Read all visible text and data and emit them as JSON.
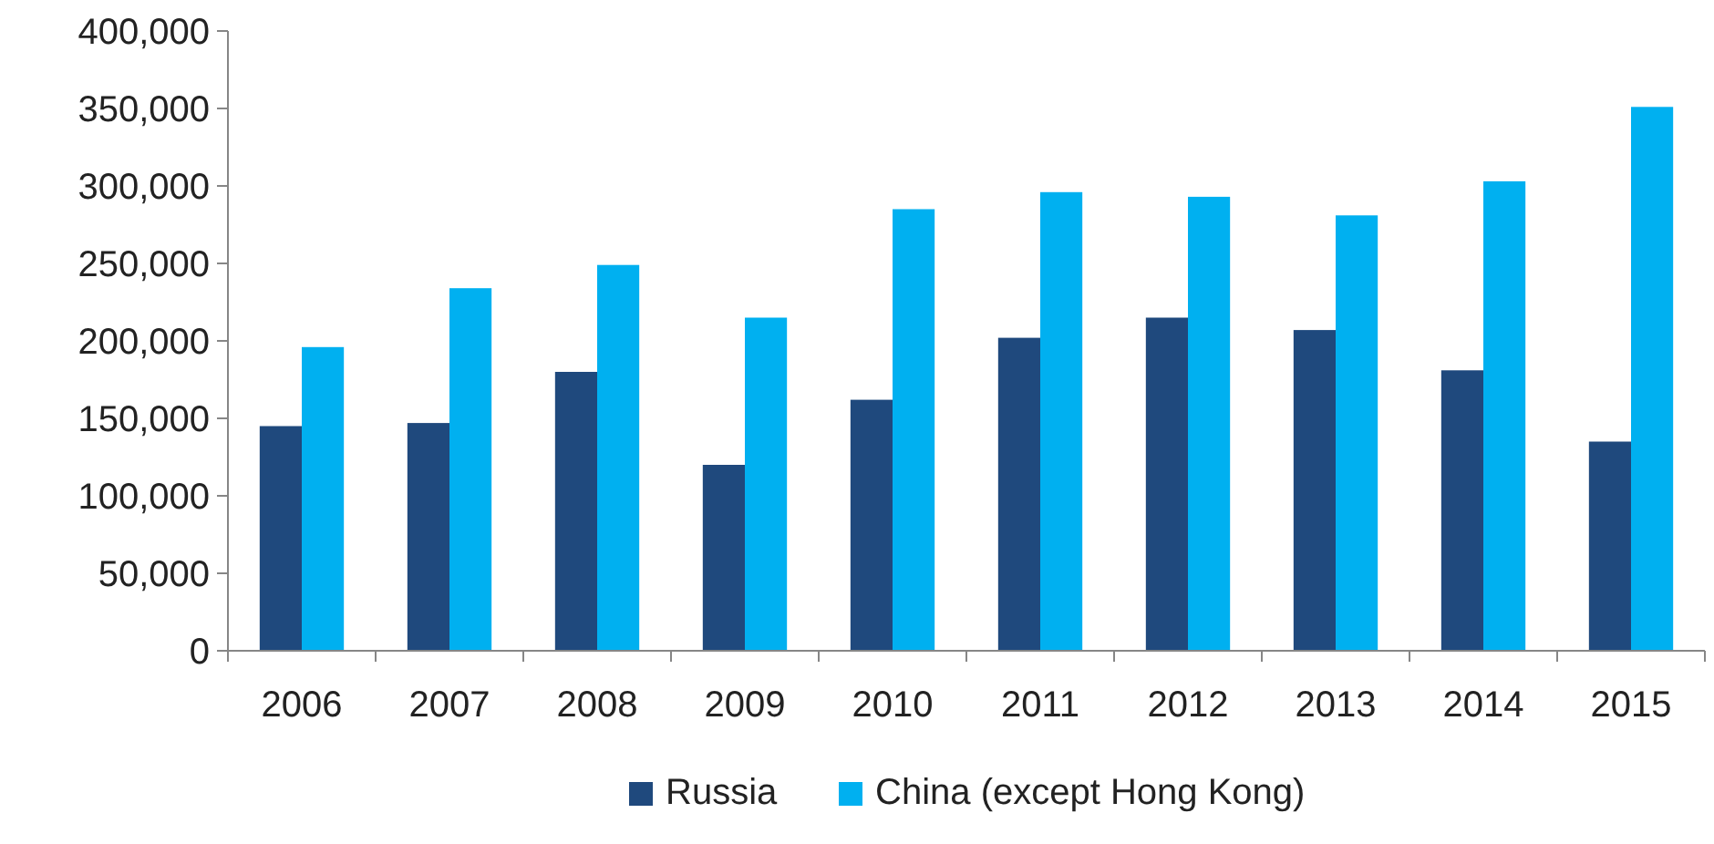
{
  "chart_data": {
    "type": "bar",
    "categories": [
      "2006",
      "2007",
      "2008",
      "2009",
      "2010",
      "2011",
      "2012",
      "2013",
      "2014",
      "2015"
    ],
    "series": [
      {
        "name": "Russia",
        "color": "#1f497d",
        "values": [
          145000,
          147000,
          180000,
          120000,
          162000,
          202000,
          215000,
          207000,
          181000,
          135000
        ]
      },
      {
        "name": "China (except Hong Kong)",
        "color": "#00b0f0",
        "values": [
          196000,
          234000,
          249000,
          215000,
          285000,
          296000,
          293000,
          281000,
          303000,
          351000
        ]
      }
    ],
    "ylim": [
      0,
      400000
    ],
    "yticks": [
      {
        "value": 0,
        "label": "0"
      },
      {
        "value": 50000,
        "label": "50,000"
      },
      {
        "value": 100000,
        "label": "100,000"
      },
      {
        "value": 150000,
        "label": "150,000"
      },
      {
        "value": 200000,
        "label": "200,000"
      },
      {
        "value": 250000,
        "label": "250,000"
      },
      {
        "value": 300000,
        "label": "300,000"
      },
      {
        "value": 350000,
        "label": "350,000"
      },
      {
        "value": 400000,
        "label": "400,000"
      }
    ],
    "grid": false,
    "legend": "bottom"
  }
}
